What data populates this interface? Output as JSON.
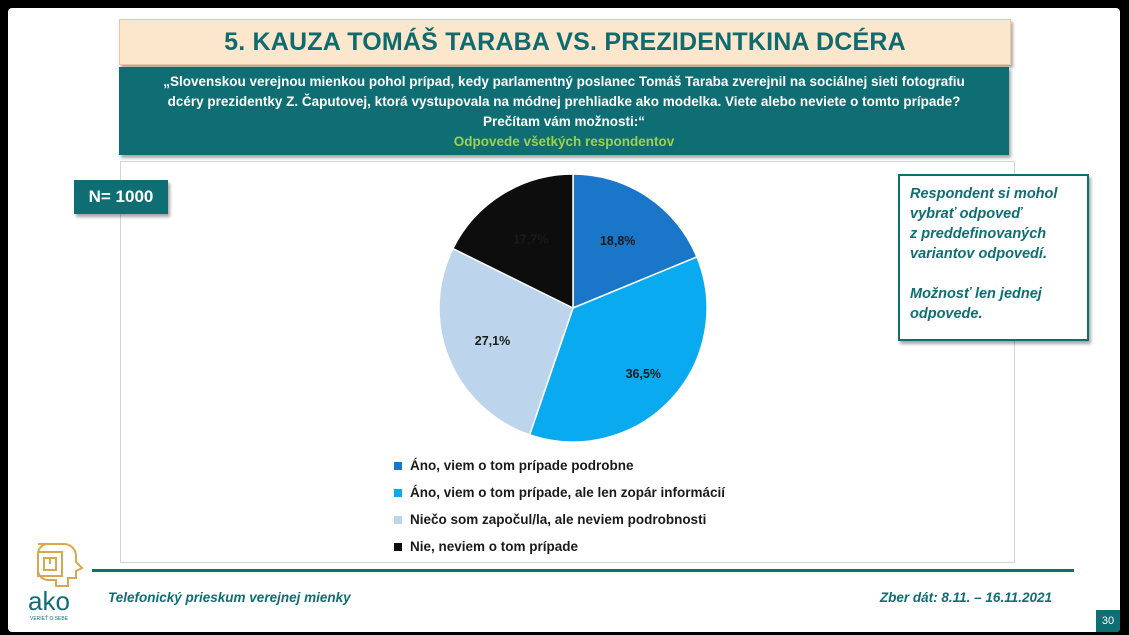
{
  "header": {
    "title": "5. KAUZA TOMÁŠ TARABA VS. PREZIDENTKINA DCÉRA"
  },
  "question": {
    "line1": "„Slovenskou verejnou mienkou pohol prípad, kedy parlamentný poslanec Tomáš Taraba zverejnil na sociálnej sieti fotografiu",
    "line2": "dcéry prezidentky Z. Čaputovej, ktorá vystupovala na módnej prehliadke ako modelka. Viete alebo neviete o tomto prípade?",
    "line3": "Prečítam vám možnosti:“",
    "subtitle": "Odpovede všetkých respondentov"
  },
  "sample_badge": "N= 1000",
  "note": {
    "line1": "Respondent si mohol",
    "line2": "vybrať odpoveď",
    "line3": "z preddefinovaných",
    "line4": "variantov odpovedí.",
    "line5": "Možnosť len jednej",
    "line6": "odpovede."
  },
  "chart_data": {
    "type": "pie",
    "categories": [
      "Áno, viem o tom prípade podrobne",
      "Áno, viem o tom prípade, ale len zopár informácií",
      "Niečo som započul/la, ale neviem podrobnosti",
      "Nie, neviem o tom prípade"
    ],
    "values": [
      18.8,
      36.5,
      27.1,
      17.7
    ],
    "labels": [
      "18,8%",
      "36,5%",
      "27,1%",
      "17,7%"
    ],
    "colors": [
      "#1976c9",
      "#0aaaf0",
      "#bdd5ec",
      "#0d0d0d"
    ],
    "legend": "bottom"
  },
  "footer": {
    "left": "Telefonický prieskum verejnej mienky",
    "right": "Zber dát: 8.11. – 16.11.2021",
    "page": "30"
  },
  "logo": {
    "text": "ako",
    "tagline": "VERIEŤ O SEBE",
    "icon": "maze-head-icon"
  }
}
